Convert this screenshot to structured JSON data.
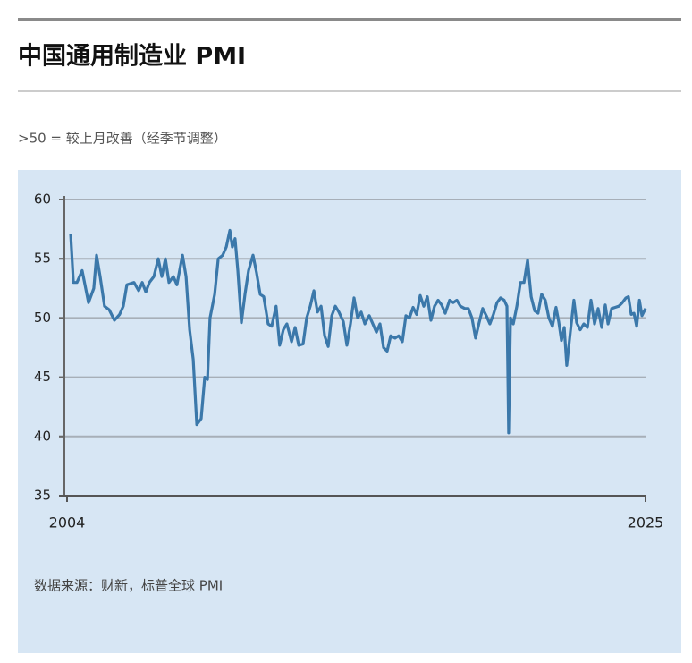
{
  "chart_data": {
    "type": "line",
    "title": "中国通用制造业 PMI",
    "subtitle": ">50 = 较上月改善（经季节调整）",
    "source": "数据来源：财新，标普全球 PMI",
    "xlim": [
      2004,
      2025
    ],
    "xticks": [
      2004,
      2025
    ],
    "ylim": [
      35,
      60
    ],
    "yticks": [
      35,
      40,
      45,
      50,
      55,
      60
    ],
    "grid": true,
    "x": [
      2004.13,
      2004.23,
      2004.36,
      2004.55,
      2004.78,
      2004.97,
      2005.07,
      2005.2,
      2005.36,
      2005.53,
      2005.72,
      2005.91,
      2006.04,
      2006.17,
      2006.43,
      2006.6,
      2006.73,
      2006.86,
      2006.99,
      2007.15,
      2007.31,
      2007.44,
      2007.57,
      2007.7,
      2007.86,
      2007.99,
      2008.19,
      2008.32,
      2008.45,
      2008.58,
      2008.71,
      2008.87,
      2009.0,
      2009.1,
      2009.19,
      2009.36,
      2009.49,
      2009.65,
      2009.78,
      2009.91,
      2010.0,
      2010.1,
      2010.2,
      2010.33,
      2010.46,
      2010.59,
      2010.75,
      2010.88,
      2011.01,
      2011.14,
      2011.3,
      2011.43,
      2011.59,
      2011.72,
      2011.85,
      2011.98,
      2012.15,
      2012.28,
      2012.41,
      2012.57,
      2012.7,
      2012.83,
      2012.96,
      2013.09,
      2013.22,
      2013.35,
      2013.48,
      2013.61,
      2013.74,
      2013.87,
      2014.03,
      2014.16,
      2014.29,
      2014.42,
      2014.55,
      2014.68,
      2014.81,
      2014.97,
      2015.1,
      2015.23,
      2015.36,
      2015.49,
      2015.62,
      2015.75,
      2015.91,
      2016.04,
      2016.17,
      2016.3,
      2016.43,
      2016.56,
      2016.69,
      2016.82,
      2016.95,
      2017.08,
      2017.21,
      2017.34,
      2017.47,
      2017.6,
      2017.73,
      2017.89,
      2018.02,
      2018.15,
      2018.28,
      2018.44,
      2018.57,
      2018.7,
      2018.83,
      2018.96,
      2019.09,
      2019.22,
      2019.35,
      2019.48,
      2019.61,
      2019.74,
      2019.87,
      2019.97,
      2020.03,
      2020.1,
      2020.2,
      2020.33,
      2020.46,
      2020.59,
      2020.72,
      2020.85,
      2020.98,
      2021.1,
      2021.23,
      2021.36,
      2021.49,
      2021.62,
      2021.75,
      2021.85,
      2021.95,
      2022.05,
      2022.14,
      2022.27,
      2022.4,
      2022.5,
      2022.63,
      2022.76,
      2022.89,
      2023.02,
      2023.15,
      2023.28,
      2023.41,
      2023.54,
      2023.64,
      2023.77,
      2023.9,
      2024.03,
      2024.16,
      2024.29,
      2024.38,
      2024.48,
      2024.58,
      2024.68,
      2024.78,
      2024.87,
      2025.0
    ],
    "series": [
      {
        "name": "PMI",
        "color": "#3b78aa",
        "values": [
          57.1,
          53,
          53,
          54,
          51.3,
          52.5,
          55.3,
          53.5,
          51,
          50.7,
          49.8,
          50.3,
          51,
          52.8,
          53,
          52.3,
          53,
          52.2,
          53,
          53.5,
          55,
          53.5,
          55,
          53,
          53.5,
          52.8,
          55.3,
          53.5,
          49,
          46.5,
          41,
          41.5,
          45,
          44.8,
          50,
          52,
          55,
          55.3,
          56,
          57.4,
          56,
          56.7,
          54,
          49.6,
          52,
          54,
          55.3,
          53.8,
          52,
          51.8,
          49.5,
          49.3,
          51,
          47.7,
          49,
          49.5,
          48,
          49.2,
          47.7,
          47.8,
          50,
          51,
          52.3,
          50.5,
          51,
          48.5,
          47.6,
          50.2,
          51,
          50.5,
          49.7,
          47.7,
          49.5,
          51.7,
          50,
          50.5,
          49.5,
          50.2,
          49.5,
          48.8,
          49.5,
          47.5,
          47.2,
          48.5,
          48.3,
          48.5,
          48,
          50.2,
          50,
          50.9,
          50.3,
          51.9,
          51,
          51.8,
          49.8,
          51,
          51.5,
          51.1,
          50.4,
          51.5,
          51.3,
          51.5,
          51,
          50.8,
          50.8,
          50,
          48.3,
          49.6,
          50.8,
          50.2,
          49.5,
          50.3,
          51.3,
          51.7,
          51.5,
          51,
          40.3,
          50,
          49.5,
          51,
          53,
          53,
          54.9,
          51.8,
          50.6,
          50.4,
          52,
          51.5,
          50,
          49.3,
          50.9,
          49.7,
          48.1,
          49.2,
          46,
          48.8,
          51.5,
          49.6,
          49,
          49.5,
          49.2,
          51.5,
          49.5,
          50.8,
          49.2,
          51.1,
          49.5,
          50.8,
          50.9,
          51,
          51.3,
          51.7,
          51.8,
          50.3,
          50.4,
          49.3,
          51.5,
          50.2,
          50.8
        ]
      }
    ]
  }
}
